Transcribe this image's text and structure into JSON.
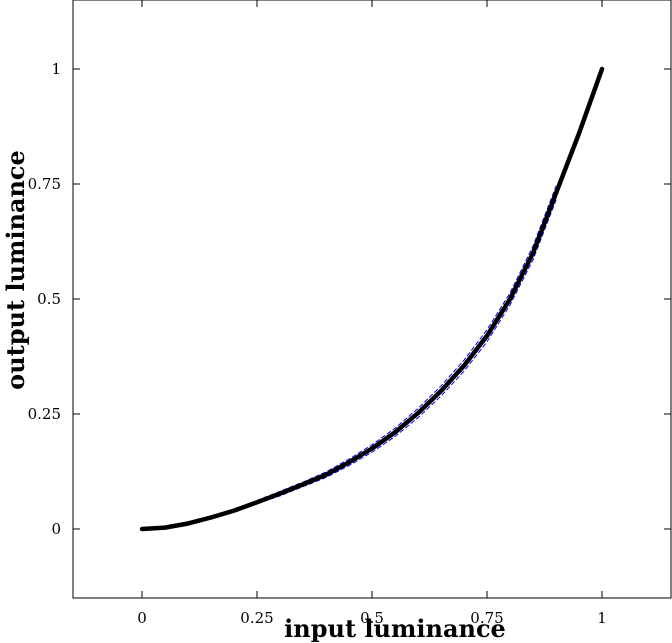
{
  "chart_data": {
    "type": "line",
    "title": "",
    "xlabel": "input luminance",
    "ylabel": "output luminance",
    "xlim": [
      -0.15,
      1.15
    ],
    "ylim": [
      -0.15,
      1.15
    ],
    "xticks": [
      0,
      0.25,
      0.5,
      0.75,
      1
    ],
    "yticks": [
      0,
      0.25,
      0.5,
      0.75,
      1
    ],
    "xtick_labels": [
      "0",
      "0.25",
      "0.5",
      "0.75",
      "1"
    ],
    "ytick_labels": [
      "0",
      "0.25",
      "0.5",
      "0.75",
      "1"
    ],
    "grid": false,
    "series": [
      {
        "color": "#000000",
        "style": "solid",
        "x": [
          0,
          0.05,
          0.1,
          0.15,
          0.2,
          0.25,
          0.3,
          0.35,
          0.4,
          0.45,
          0.5,
          0.55,
          0.6,
          0.65,
          0.7,
          0.75,
          0.8,
          0.85,
          0.9,
          0.95,
          1
        ],
        "y": [
          0,
          0.003,
          0.012,
          0.025,
          0.04,
          0.058,
          0.077,
          0.097,
          0.118,
          0.145,
          0.175,
          0.21,
          0.252,
          0.3,
          0.355,
          0.42,
          0.5,
          0.6,
          0.73,
          0.86,
          1
        ]
      },
      {
        "color": "#0000ff",
        "style": "dashed",
        "x": [
          0.25,
          0.3,
          0.35,
          0.4,
          0.45,
          0.5,
          0.55,
          0.6,
          0.65,
          0.7,
          0.75,
          0.8,
          0.85,
          0.9
        ],
        "y": [
          0.062,
          0.082,
          0.102,
          0.124,
          0.152,
          0.183,
          0.219,
          0.262,
          0.311,
          0.367,
          0.433,
          0.513,
          0.615,
          0.745
        ]
      },
      {
        "color": "#0000ff",
        "style": "dashed",
        "x": [
          0.25,
          0.3,
          0.35,
          0.4,
          0.45,
          0.5,
          0.55,
          0.6,
          0.65,
          0.7,
          0.75,
          0.8,
          0.85,
          0.9
        ],
        "y": [
          0.055,
          0.072,
          0.092,
          0.112,
          0.138,
          0.167,
          0.201,
          0.242,
          0.289,
          0.343,
          0.407,
          0.487,
          0.585,
          0.715
        ]
      }
    ]
  }
}
